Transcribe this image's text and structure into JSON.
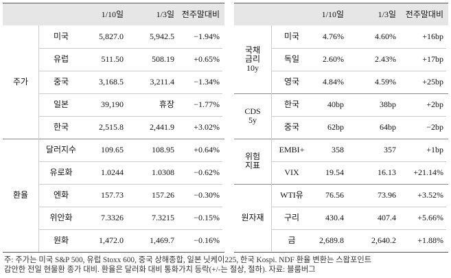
{
  "tables": [
    {
      "headers": [
        "1/10일",
        "1/3일",
        "전주말대비"
      ],
      "groups": [
        {
          "label": [
            "주가"
          ],
          "rows": [
            [
              "미국",
              "5,827.0",
              "5,942.5",
              "−1.94%"
            ],
            [
              "유럽",
              "511.50",
              "508.19",
              "+0.65%"
            ],
            [
              "중국",
              "3,168.5",
              "3,211.4",
              "−1.34%"
            ],
            [
              "일본",
              "39,190",
              "휴장",
              "−1.77%"
            ],
            [
              "한국",
              "2,515.8",
              "2,441.9",
              "+3.02%"
            ]
          ]
        },
        {
          "label": [
            "환율"
          ],
          "rows": [
            [
              "달러지수",
              "109.65",
              "108.95",
              "+0.64%"
            ],
            [
              "유로화",
              "1.0244",
              "1.0308",
              "−0.62%"
            ],
            [
              "엔화",
              "157.73",
              "157.26",
              "−0.30%"
            ],
            [
              "위안화",
              "7.3326",
              "7.3215",
              "−0.15%"
            ],
            [
              "원화",
              "1,472.0",
              "1,469.7",
              "−0.16%"
            ]
          ]
        }
      ]
    },
    {
      "headers": [
        "1/10일",
        "1/3일",
        "전주말대비"
      ],
      "groups": [
        {
          "label": [
            "국채",
            "금리",
            "10y"
          ],
          "rows": [
            [
              "미국",
              "4.76%",
              "4.60%",
              "+16bp"
            ],
            [
              "독일",
              "2.60%",
              "2.43%",
              "+17bp"
            ],
            [
              "영국",
              "4.84%",
              "4.59%",
              "+25bp"
            ]
          ]
        },
        {
          "label": [
            "CDS",
            "5y"
          ],
          "rows": [
            [
              "한국",
              "40bp",
              "38bp",
              "+2bp"
            ],
            [
              "중국",
              "62bp",
              "64bp",
              "−2bp"
            ]
          ]
        },
        {
          "label": [
            "위험",
            "지표"
          ],
          "rows": [
            [
              "EMBI+",
              "358",
              "357",
              "+1bp"
            ],
            [
              "VIX",
              "19.54",
              "16.13",
              "+21.14%"
            ]
          ]
        },
        {
          "label": [
            "원자재"
          ],
          "rows": [
            [
              "WTI유",
              "76.56",
              "73.96",
              "+3.52%"
            ],
            [
              "구리",
              "430.4",
              "407.4",
              "+5.66%"
            ],
            [
              "금",
              "2,689.8",
              "2,640.2",
              "+1.88%"
            ]
          ]
        }
      ]
    }
  ],
  "footnote": [
    "주: 주가는 미국 S&P 500, 유럽 Stoxx 600, 중국 상해종합, 일본 닛케이225, 한국 Kospi. NDF 환율 변환는 스왑포인트",
    "감안한 전일 현물환 종가 대비. 환율은 달러화 대비 통화가치 등락(+/-는 절상, 절하). 자료: 블룸버그"
  ]
}
